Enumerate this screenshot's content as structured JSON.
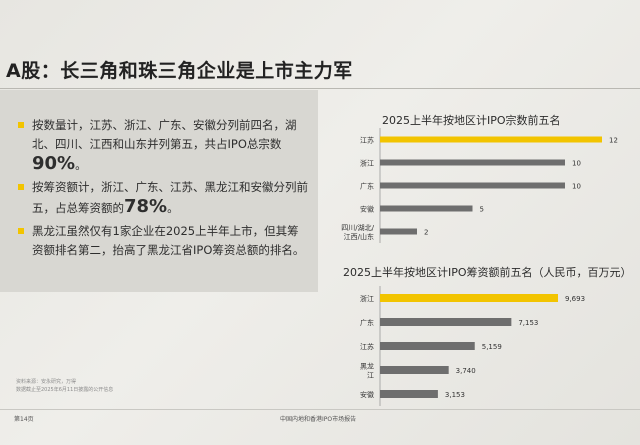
{
  "page": {
    "title": "A股：长三角和珠三角企业是上市主力军",
    "page_number": "第14页",
    "report_name": "中国内地和香港IPO市场报告"
  },
  "bullets": [
    {
      "text": "按数量计，江苏、浙江、广东、安徽分列前四名，湖北、四川、江西和山东并列第五，共占IPO总宗数",
      "highlight": "90%",
      "suffix": "。"
    },
    {
      "text": "按筹资额计，浙江、广东、江苏、黑龙江和安徽分列前五，占总筹资额的",
      "highlight": "78%",
      "suffix": "。"
    },
    {
      "text": "黑龙江虽然仅有1家企业在2025上半年上市，但其筹资额排名第二，抬高了黑龙江省IPO筹资总额的排名。",
      "highlight": "",
      "suffix": ""
    }
  ],
  "notes": [
    "资料来源：安永研究，万得",
    "数据截止至2025年6月11日披露的公开信息"
  ],
  "colors": {
    "highlight_bar": "#f2c400",
    "bar": "#6e6e6e",
    "accent": "#f2c400"
  },
  "chart_data": [
    {
      "type": "bar",
      "orientation": "horizontal",
      "title": "2025上半年按地区计IPO宗数前五名",
      "categories": [
        "江苏",
        "浙江",
        "广东",
        "安徽",
        "四川/湖北/江西/山东"
      ],
      "category_lines": [
        [
          "江苏"
        ],
        [
          "浙江"
        ],
        [
          "广东"
        ],
        [
          "安徽"
        ],
        [
          "四川/湖北/",
          "江西/山东"
        ]
      ],
      "values": [
        12,
        10,
        10,
        5,
        2
      ],
      "value_labels": [
        "12",
        "10",
        "10",
        "5",
        "2"
      ],
      "highlight_index": 0,
      "xlim": [
        0,
        12
      ]
    },
    {
      "type": "bar",
      "orientation": "horizontal",
      "title": "2025上半年按地区计IPO筹资额前五名（人民币，百万元）",
      "categories": [
        "浙江",
        "广东",
        "江苏",
        "黑龙江",
        "安徽"
      ],
      "category_lines": [
        [
          "浙江"
        ],
        [
          "广东"
        ],
        [
          "江苏"
        ],
        [
          "黑龙",
          "江"
        ],
        [
          "安徽"
        ]
      ],
      "values": [
        9693,
        7153,
        5159,
        3740,
        3153
      ],
      "value_labels": [
        "9,693",
        "7,153",
        "5,159",
        "3,740",
        "3,153"
      ],
      "highlight_index": 0,
      "xlim": [
        0,
        9693
      ]
    }
  ]
}
